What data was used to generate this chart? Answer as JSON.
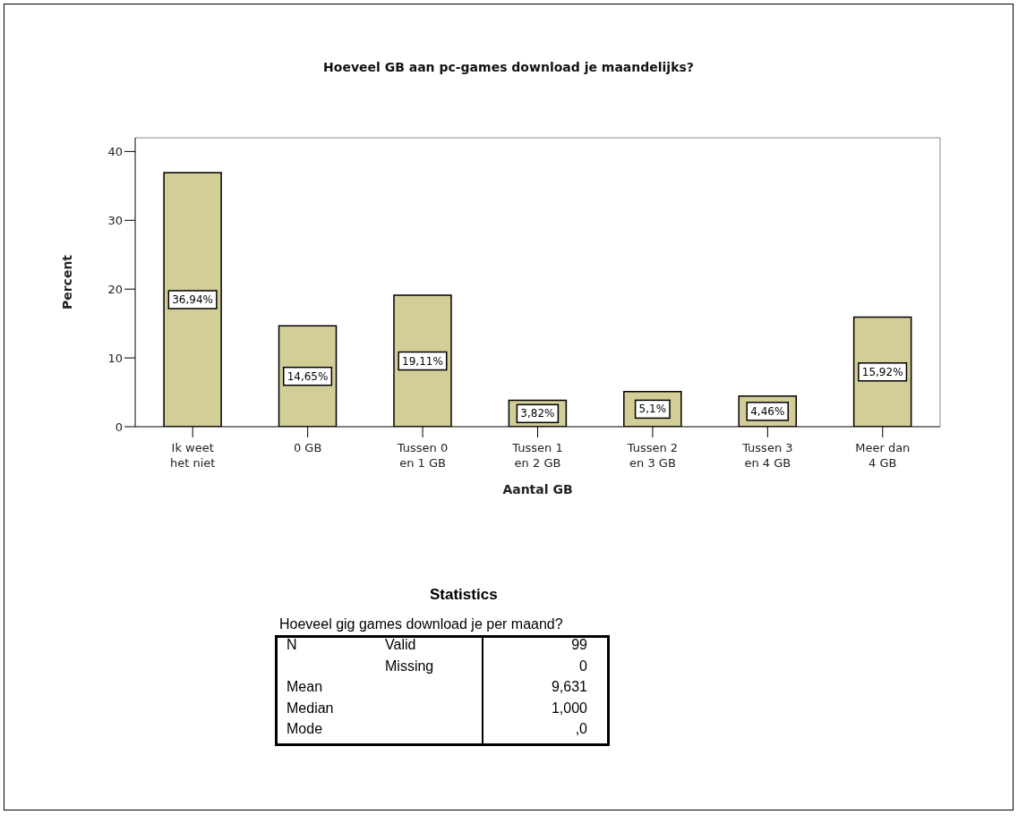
{
  "chart_data": {
    "type": "bar",
    "title": "Hoeveel GB aan pc-games download je maandelijks?",
    "xlabel": "Aantal GB",
    "ylabel": "Percent",
    "categories": [
      "Ik weet het niet",
      "0 GB",
      "Tussen 0 en 1 GB",
      "Tussen 1 en 2 GB",
      "Tussen 2 en 3 GB",
      "Tussen 3 en 4 GB",
      "Meer dan 4 GB"
    ],
    "values": [
      36.94,
      14.65,
      19.11,
      3.82,
      5.1,
      4.46,
      15.92
    ],
    "value_labels": [
      "36,94%",
      "14,65%",
      "19,11%",
      "3,82%",
      "5,1%",
      "4,46%",
      "15,92%"
    ],
    "color": "#d3cd98",
    "ylim": [
      0,
      42
    ],
    "yticks": [
      0,
      10,
      20,
      30,
      40
    ],
    "grid": false,
    "legend": false,
    "annotations": [
      "Statistics",
      "Hoeveel gig games download je per maand?",
      "N",
      "Valid",
      "99",
      "Missing",
      "0",
      "Mean",
      "9,631",
      "Median",
      "1,000",
      "Mode",
      ",0"
    ]
  }
}
